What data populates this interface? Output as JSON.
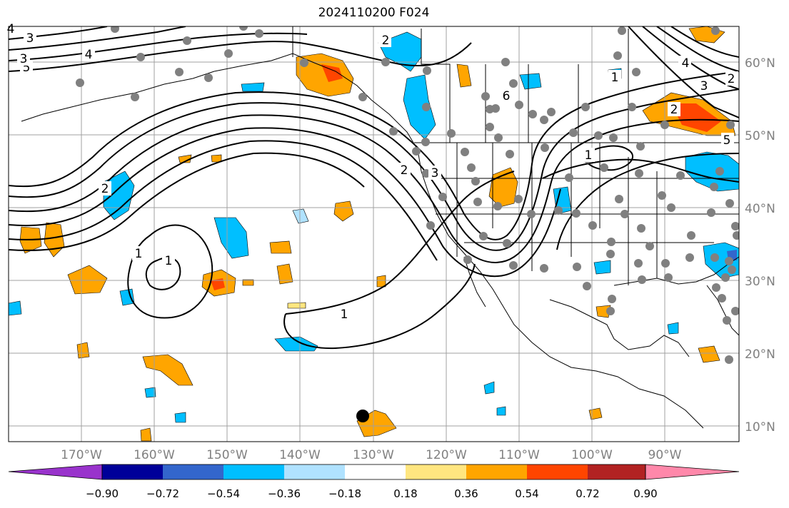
{
  "title": "2024110200 F024",
  "map": {
    "lat_ticks": [
      "60°N",
      "50°N",
      "40°N",
      "30°N",
      "20°N",
      "10°N"
    ],
    "lon_ticks": [
      "170°W",
      "160°W",
      "150°W",
      "140°W",
      "130°W",
      "120°W",
      "110°W",
      "100°W",
      "90°W"
    ],
    "contour_labels": [
      "5",
      "4",
      "3",
      "2",
      "1",
      "1",
      "1",
      "2",
      "3",
      "4",
      "5",
      "6",
      "2",
      "1",
      "2",
      "3",
      "4",
      "1",
      "2",
      "3"
    ],
    "colors": {
      "contour": "#000000",
      "grid": "#a0a0a0",
      "station_dot": "#808080",
      "marker": "#000000"
    }
  },
  "colorbar": {
    "tick_labels": [
      "−0.90",
      "−0.72",
      "−0.54",
      "−0.36",
      "−0.18",
      "0.18",
      "0.36",
      "0.54",
      "0.72",
      "0.90"
    ],
    "colors": [
      "#9933cc",
      "#000099",
      "#3366cc",
      "#00bfff",
      "#b0e2ff",
      "#ffffff",
      "#ffe680",
      "#ffa500",
      "#ff4500",
      "#b22222",
      "#ff88aa"
    ]
  }
}
